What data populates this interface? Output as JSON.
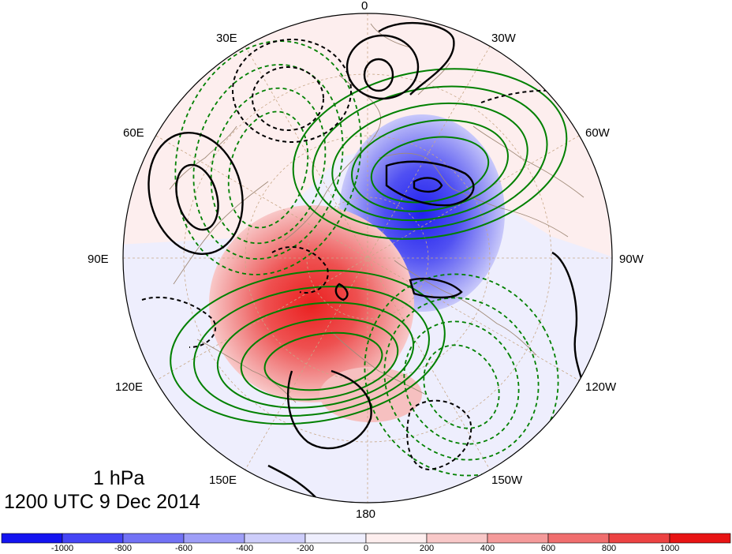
{
  "map": {
    "projection": "north-polar-stereographic",
    "longitude_labels": [
      "0",
      "30W",
      "60W",
      "90W",
      "120W",
      "150W",
      "180",
      "150E",
      "120E",
      "90E",
      "60E",
      "30E"
    ],
    "level_label": "1 hPa",
    "time_label": "1200 UTC 9 Dec 2014",
    "colors": {
      "positive_contour": "#008000",
      "negative_contour_dashed": "#008000",
      "black_contour": "#000000",
      "coastline": "#a08a78",
      "graticule": "#c8a888"
    }
  },
  "colorbar": {
    "colors": [
      "#1414f0",
      "#4545f5",
      "#7272f5",
      "#9e9ef7",
      "#cdcdfa",
      "#eeeefd",
      "#fdeeee",
      "#f8c8c8",
      "#f49a9a",
      "#f06e6e",
      "#ec4242",
      "#e81414"
    ],
    "tick_labels": [
      "-1000",
      "-800",
      "-600",
      "-400",
      "-200",
      "0",
      "200",
      "400",
      "600",
      "800",
      "1000"
    ]
  }
}
